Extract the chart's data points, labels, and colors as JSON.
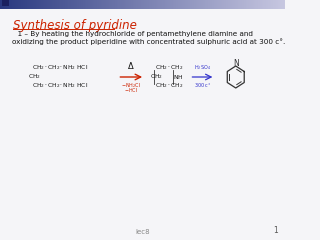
{
  "title": "Synthesis of pyridine",
  "subtitle_line1": "  1 – By heating the hydrochloride of pentamethylene diamine and",
  "subtitle_line2": "oxidizing the product piperidine with concentrated sulphuric acid at 300 c°.",
  "bg_color": "#f5f5f8",
  "title_color": "#cc2200",
  "text_color": "#111111",
  "footer_text": "lec8",
  "footer_page": "1",
  "arrow1_color": "#cc2200",
  "arrow2_color": "#3333cc",
  "chem_color": "#111111",
  "ring_color": "#333333",
  "top_bar_left": "#2a3a80",
  "top_bar_right": "#c0c8e0"
}
